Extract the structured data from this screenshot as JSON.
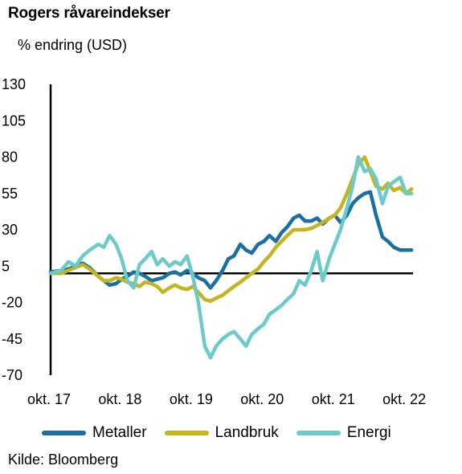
{
  "title": "Rogers råvareindekser",
  "subtitle": "% endring (USD)",
  "source": "Kilde: Bloomberg",
  "colors": {
    "Metaller": "#1a6fa3",
    "Landbruk": "#c4b41e",
    "Energi": "#6ccaca",
    "zero_line": "#000000"
  },
  "chart_data": {
    "type": "line",
    "title": "Rogers råvareindekser",
    "ylabel": "% endring (USD)",
    "ylim": [
      -70,
      130
    ],
    "yticks": [
      130,
      105,
      80,
      55,
      30,
      5,
      -20,
      -45,
      -70
    ],
    "xlim": [
      2017.75,
      2022.85
    ],
    "xticks": [
      {
        "label": "okt. 17",
        "x": 2017.75
      },
      {
        "label": "okt. 18",
        "x": 2018.75
      },
      {
        "label": "okt. 19",
        "x": 2019.75
      },
      {
        "label": "okt. 20",
        "x": 2020.75
      },
      {
        "label": "okt. 21",
        "x": 2021.75
      },
      {
        "label": "okt. 22",
        "x": 2022.75
      }
    ],
    "reference_line": 0,
    "grid": false,
    "legend": "bottom",
    "series": [
      {
        "name": "Metaller",
        "x": [
          2017.75,
          2017.9,
          2018.0,
          2018.1,
          2018.2,
          2018.3,
          2018.42,
          2018.5,
          2018.58,
          2018.67,
          2018.75,
          2018.83,
          2018.92,
          2019.0,
          2019.08,
          2019.17,
          2019.25,
          2019.33,
          2019.42,
          2019.5,
          2019.58,
          2019.67,
          2019.75,
          2019.83,
          2019.92,
          2020.0,
          2020.08,
          2020.17,
          2020.25,
          2020.33,
          2020.42,
          2020.5,
          2020.58,
          2020.67,
          2020.75,
          2020.83,
          2020.92,
          2021.0,
          2021.08,
          2021.17,
          2021.25,
          2021.33,
          2021.42,
          2021.5,
          2021.58,
          2021.67,
          2021.75,
          2021.83,
          2021.92,
          2022.0,
          2022.08,
          2022.17,
          2022.25,
          2022.33,
          2022.42,
          2022.5,
          2022.58,
          2022.67,
          2022.75,
          2022.83
        ],
        "values": [
          1,
          2,
          3,
          5,
          7,
          4,
          -2,
          -5,
          -8,
          -7,
          -4,
          -2,
          1,
          0,
          -2,
          -5,
          -4,
          -3,
          0,
          1,
          -1,
          2,
          0,
          -3,
          -5,
          -10,
          -5,
          2,
          10,
          12,
          20,
          16,
          14,
          20,
          22,
          26,
          22,
          28,
          32,
          38,
          40,
          36,
          36,
          38,
          34,
          38,
          40,
          35,
          40,
          48,
          52,
          55,
          56,
          40,
          25,
          22,
          18,
          16,
          16,
          16
        ]
      },
      {
        "name": "Landbruk",
        "x": [
          2017.75,
          2017.9,
          2018.0,
          2018.1,
          2018.2,
          2018.3,
          2018.42,
          2018.5,
          2018.58,
          2018.67,
          2018.75,
          2018.83,
          2018.92,
          2019.0,
          2019.08,
          2019.17,
          2019.25,
          2019.33,
          2019.42,
          2019.5,
          2019.58,
          2019.67,
          2019.75,
          2019.83,
          2019.92,
          2020.0,
          2020.08,
          2020.17,
          2020.25,
          2020.33,
          2020.42,
          2020.5,
          2020.58,
          2020.67,
          2020.75,
          2020.83,
          2020.92,
          2021.0,
          2021.08,
          2021.17,
          2021.25,
          2021.33,
          2021.42,
          2021.5,
          2021.58,
          2021.67,
          2021.75,
          2021.83,
          2021.92,
          2022.0,
          2022.08,
          2022.17,
          2022.25,
          2022.33,
          2022.42,
          2022.5,
          2022.58,
          2022.67,
          2022.75,
          2022.83
        ],
        "values": [
          0,
          0,
          2,
          4,
          6,
          3,
          -2,
          -5,
          -5,
          -3,
          -4,
          -6,
          -7,
          -9,
          -6,
          -7,
          -9,
          -13,
          -10,
          -8,
          -10,
          -11,
          -9,
          -13,
          -18,
          -19,
          -17,
          -15,
          -12,
          -9,
          -6,
          -3,
          0,
          3,
          8,
          12,
          18,
          22,
          26,
          30,
          30,
          30,
          31,
          33,
          35,
          38,
          40,
          45,
          55,
          65,
          75,
          80,
          70,
          60,
          58,
          62,
          57,
          59,
          55,
          58
        ]
      },
      {
        "name": "Energi",
        "x": [
          2017.75,
          2017.9,
          2018.0,
          2018.1,
          2018.2,
          2018.3,
          2018.42,
          2018.5,
          2018.58,
          2018.67,
          2018.75,
          2018.83,
          2018.92,
          2019.0,
          2019.08,
          2019.17,
          2019.25,
          2019.33,
          2019.42,
          2019.5,
          2019.58,
          2019.67,
          2019.75,
          2019.83,
          2019.92,
          2020.0,
          2020.08,
          2020.17,
          2020.25,
          2020.33,
          2020.42,
          2020.5,
          2020.58,
          2020.67,
          2020.75,
          2020.83,
          2020.92,
          2021.0,
          2021.08,
          2021.17,
          2021.25,
          2021.33,
          2021.42,
          2021.5,
          2021.58,
          2021.67,
          2021.75,
          2021.83,
          2021.92,
          2022.0,
          2022.08,
          2022.17,
          2022.25,
          2022.33,
          2022.42,
          2022.5,
          2022.58,
          2022.67,
          2022.75,
          2022.83
        ],
        "values": [
          0,
          2,
          8,
          5,
          12,
          16,
          20,
          18,
          26,
          20,
          10,
          -5,
          -10,
          6,
          10,
          15,
          6,
          10,
          5,
          8,
          6,
          12,
          -2,
          -20,
          -50,
          -58,
          -50,
          -45,
          -42,
          -40,
          -45,
          -50,
          -42,
          -38,
          -35,
          -28,
          -25,
          -22,
          -18,
          -14,
          -5,
          -8,
          2,
          15,
          -5,
          10,
          20,
          30,
          45,
          60,
          80,
          70,
          72,
          65,
          48,
          60,
          63,
          66,
          55,
          55
        ]
      }
    ]
  }
}
